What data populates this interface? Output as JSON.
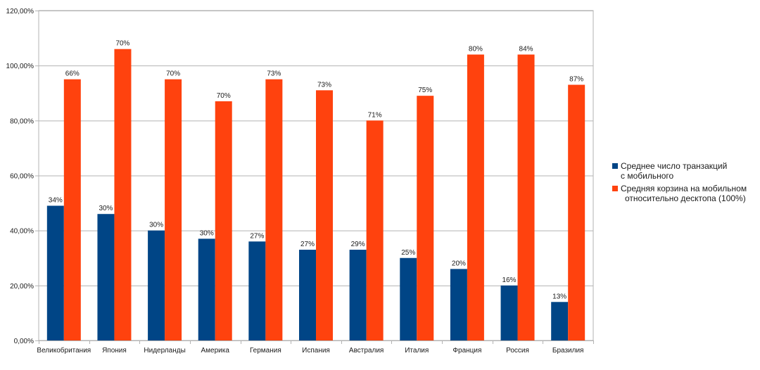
{
  "chart_data": {
    "type": "bar",
    "grid": true,
    "legend_position": "right",
    "ylim": [
      0,
      120
    ],
    "yticks": [
      0,
      20,
      40,
      60,
      80,
      100,
      120
    ],
    "ytick_labels": [
      "0,00%",
      "20,00%",
      "40,00%",
      "60,00%",
      "80,00%",
      "100,00%",
      "120,00%"
    ],
    "categories": [
      "Великобритания",
      "Япония",
      "Нидерланды",
      "Америка",
      "Германия",
      "Испания",
      "Австралия",
      "Италия",
      "Франция",
      "Россия",
      "Бразилия"
    ],
    "series": [
      {
        "name": "Среднее число транзакций с мобильного",
        "legend_lines": [
          "Среднее число транзакций",
          "с мобильного"
        ],
        "color": "#004586",
        "values": [
          49,
          46,
          40,
          37,
          36,
          33,
          33,
          30,
          26,
          20,
          14
        ],
        "data_labels": [
          "34%",
          "30%",
          "30%",
          "30%",
          "27%",
          "27%",
          "29%",
          "25%",
          "20%",
          "16%",
          "13%"
        ]
      },
      {
        "name": "Средняя корзина на мобильном относительно десктопа (100%)",
        "legend_lines": [
          "Средняя корзина на мобильном",
          "относительно десктопа (100%)"
        ],
        "color": "#ff420e",
        "values": [
          95,
          106,
          95,
          87,
          95,
          91,
          80,
          89,
          104,
          104,
          93
        ],
        "data_labels": [
          "66%",
          "70%",
          "70%",
          "70%",
          "73%",
          "73%",
          "71%",
          "75%",
          "80%",
          "84%",
          "87%"
        ]
      }
    ]
  }
}
